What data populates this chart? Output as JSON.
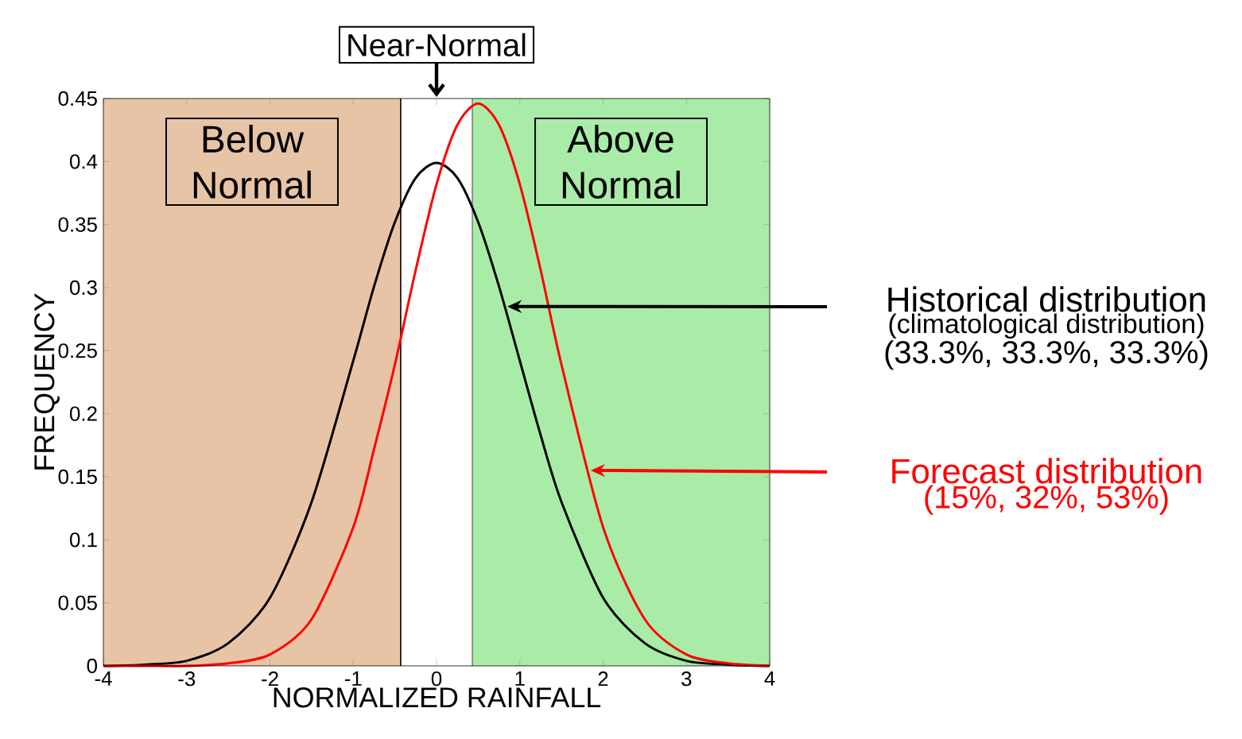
{
  "chart_data": {
    "type": "line",
    "xlabel": "NORMALIZED RAINFALL",
    "ylabel": "FREQUENCY",
    "xlim": [
      -4,
      4
    ],
    "ylim": [
      0,
      0.45
    ],
    "xticks": [
      -4,
      -3,
      -2,
      -1,
      0,
      1,
      2,
      3,
      4
    ],
    "yticks": [
      0,
      0.05,
      0.1,
      0.15,
      0.2,
      0.25,
      0.3,
      0.35,
      0.4,
      0.45
    ],
    "grid": false,
    "legend": false,
    "marker": "none",
    "line_style": "solid",
    "x": [
      -4,
      -3.5,
      -3,
      -2.5,
      -2,
      -1.5,
      -1,
      -0.75,
      -0.5,
      -0.25,
      0,
      0.25,
      0.5,
      0.75,
      1,
      1.25,
      1.5,
      2,
      2.5,
      3,
      3.5,
      4
    ],
    "series": [
      {
        "name": "Historical distribution",
        "color": "#000000",
        "values": [
          0.0,
          0.001,
          0.004,
          0.018,
          0.054,
          0.13,
          0.242,
          0.301,
          0.352,
          0.387,
          0.399,
          0.387,
          0.352,
          0.301,
          0.242,
          0.183,
          0.13,
          0.054,
          0.018,
          0.004,
          0.001,
          0.0
        ]
      },
      {
        "name": "Forecast distribution",
        "color": "#ff0000",
        "values": [
          0.0,
          0.0,
          0.0,
          0.002,
          0.009,
          0.037,
          0.11,
          0.172,
          0.239,
          0.314,
          0.382,
          0.429,
          0.446,
          0.429,
          0.382,
          0.314,
          0.239,
          0.11,
          0.037,
          0.009,
          0.002,
          0.0
        ]
      }
    ],
    "bands": [
      {
        "axis": "x",
        "from": -4,
        "to": -0.43,
        "label": "Below Normal",
        "color": "#e8c4a6"
      },
      {
        "axis": "x",
        "from": 0.43,
        "to": 4,
        "label": "Above Normal",
        "color": "#a8eca8"
      }
    ],
    "ref_lines": [
      {
        "axis": "x",
        "value": -0.43,
        "color": "#000000"
      },
      {
        "axis": "x",
        "value": 0.43,
        "color": "#808080"
      }
    ],
    "annotations": [
      "Near-Normal",
      "(climatological distribution)",
      "(33.3%, 33.3%, 33.3%)",
      "(15%, 32%, 53%)"
    ]
  }
}
